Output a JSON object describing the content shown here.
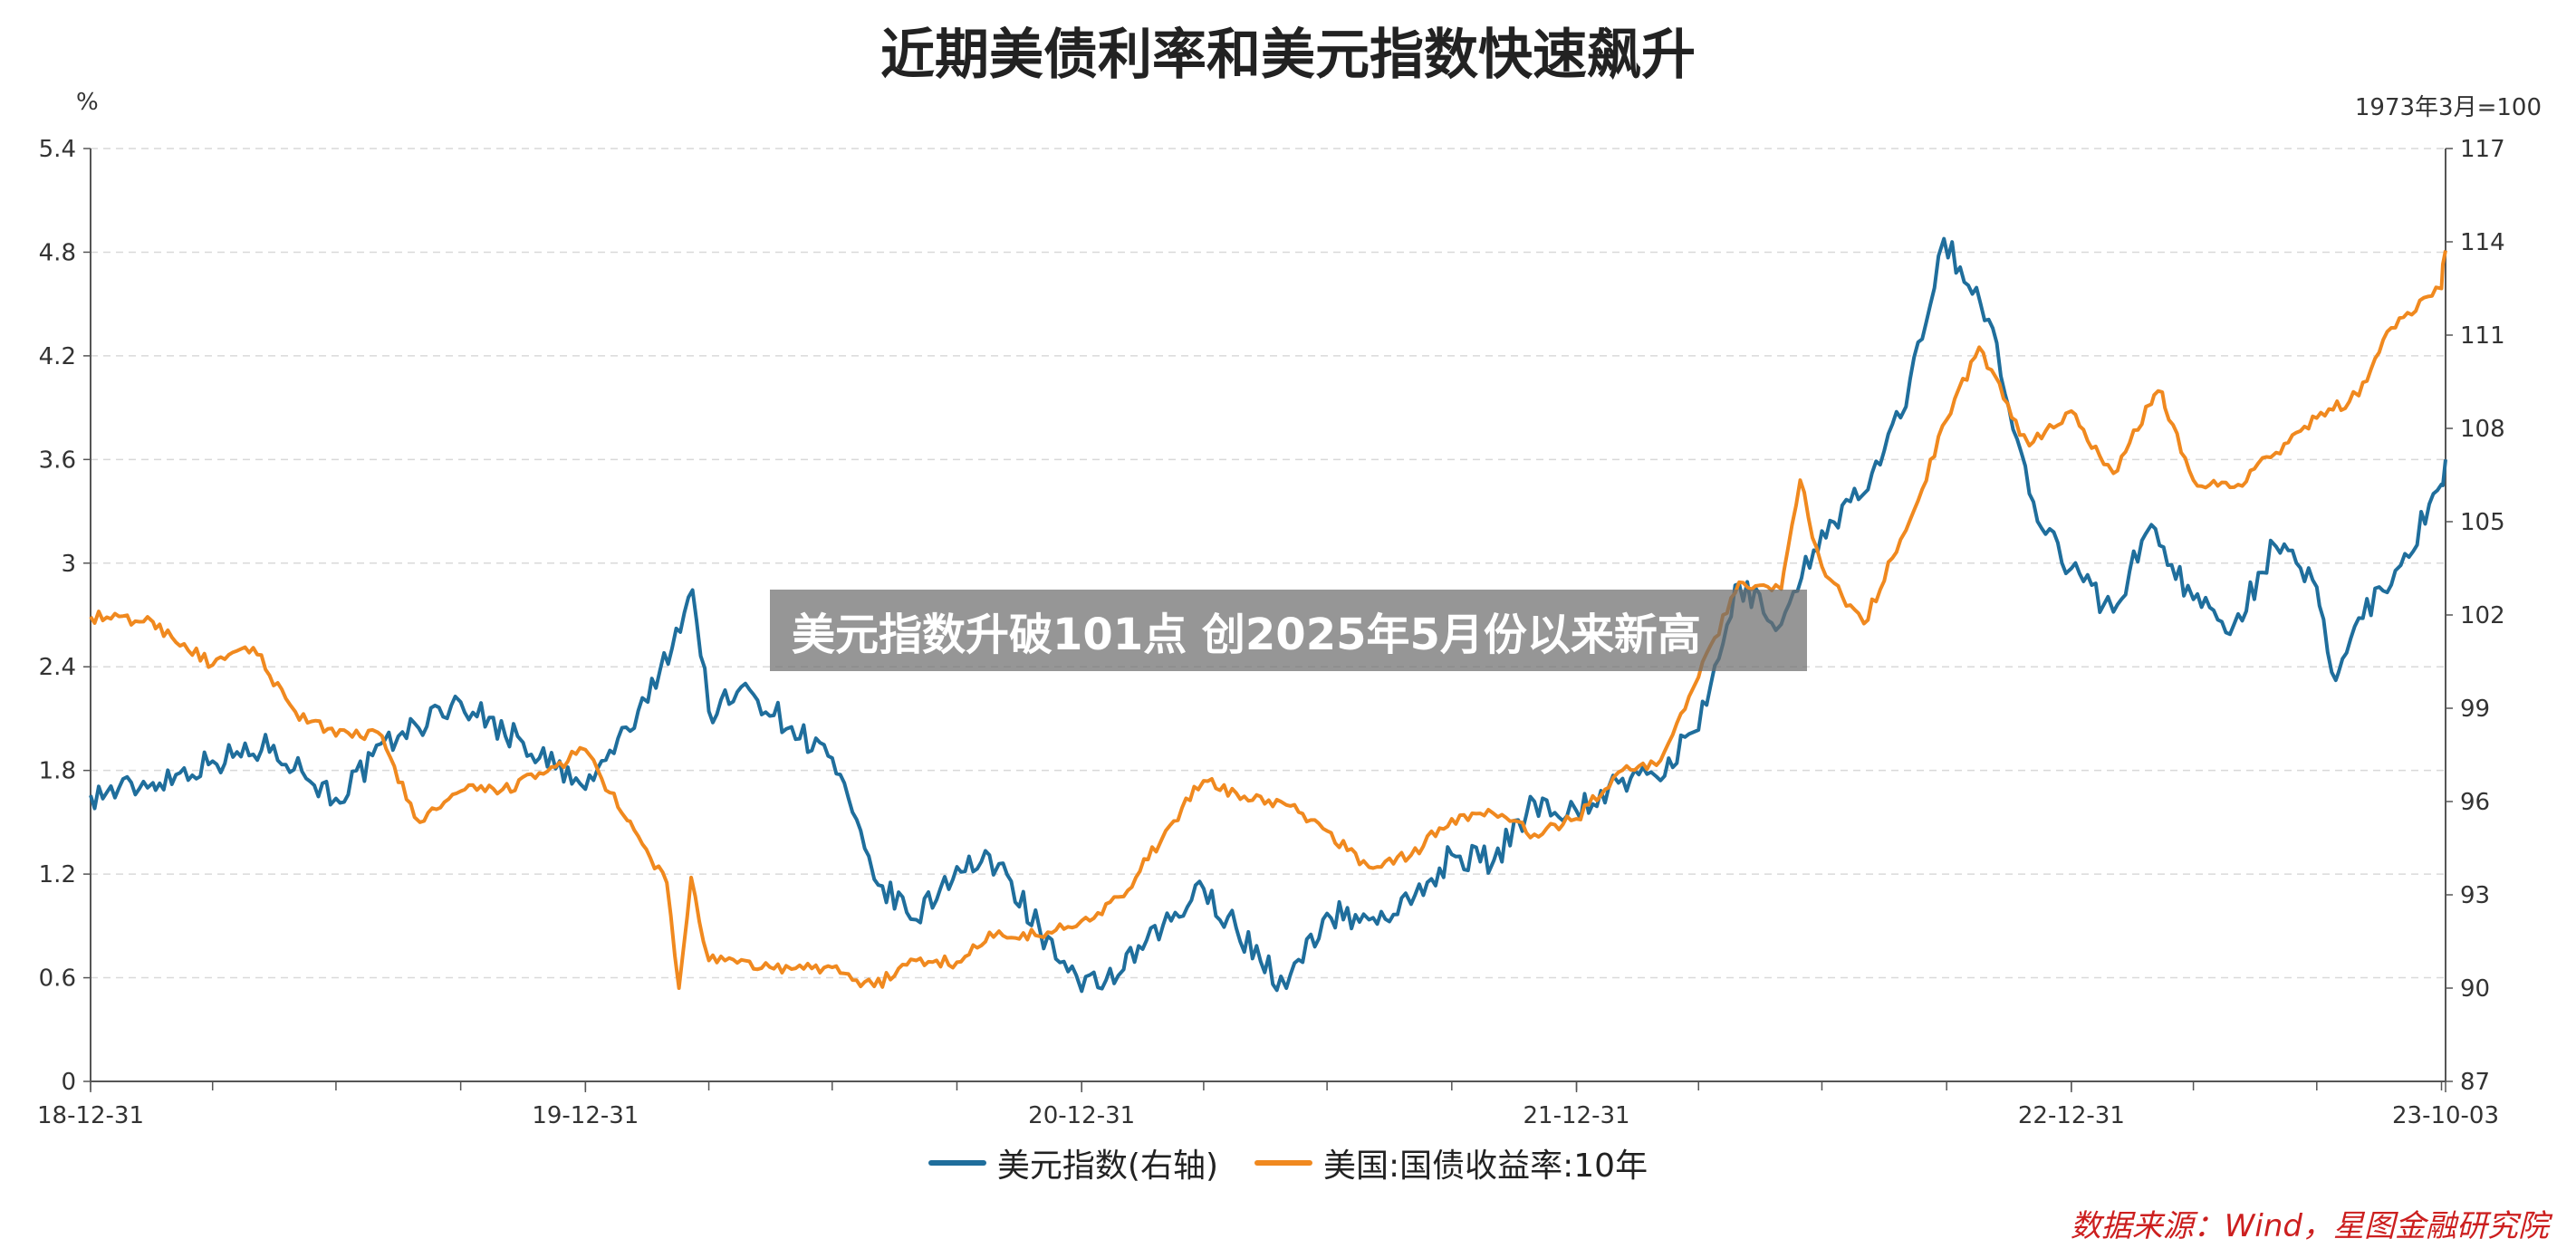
{
  "chart_data": {
    "type": "line",
    "title": "近期美债利率和美元指数快速飙升",
    "left_axis_unit": "%",
    "right_axis_unit": "1973年3月=100",
    "left_ylim": [
      0,
      5.4
    ],
    "left_ticks": [
      "0",
      "0.6",
      "1.2",
      "1.8",
      "2.4",
      "3",
      "3.6",
      "4.2",
      "4.8",
      "5.4"
    ],
    "right_ylim": [
      87,
      117
    ],
    "right_ticks": [
      "87",
      "90",
      "93",
      "96",
      "99",
      "102",
      "105",
      "108",
      "111",
      "114",
      "117"
    ],
    "x_range": [
      "2018-12-31",
      "2023-10-03"
    ],
    "x_tick_labels": [
      "18-12-31",
      "19-12-31",
      "20-12-31",
      "21-12-31",
      "22-12-31",
      "23-10-03"
    ],
    "grid": true,
    "legend_position": "bottom",
    "series": [
      {
        "name": "美元指数(右轴)",
        "axis": "right",
        "color": "#1f6e9c",
        "points": [
          [
            "2018-12-31",
            96.2
          ],
          [
            "2019-02-15",
            96.6
          ],
          [
            "2019-03-31",
            97.3
          ],
          [
            "2019-05-15",
            97.8
          ],
          [
            "2019-06-30",
            96.1
          ],
          [
            "2019-08-15",
            98.1
          ],
          [
            "2019-09-30",
            99.2
          ],
          [
            "2019-11-15",
            97.9
          ],
          [
            "2019-12-31",
            96.4
          ],
          [
            "2020-02-15",
            99.2
          ],
          [
            "2020-03-19",
            102.8
          ],
          [
            "2020-03-31",
            98.9
          ],
          [
            "2020-04-30",
            99.6
          ],
          [
            "2020-05-31",
            98.4
          ],
          [
            "2020-06-30",
            97.4
          ],
          [
            "2020-07-31",
            93.5
          ],
          [
            "2020-08-31",
            92.2
          ],
          [
            "2020-09-30",
            93.9
          ],
          [
            "2020-10-31",
            94.0
          ],
          [
            "2020-11-30",
            91.9
          ],
          [
            "2020-12-31",
            89.9
          ],
          [
            "2021-01-31",
            90.6
          ],
          [
            "2021-03-31",
            93.2
          ],
          [
            "2021-05-31",
            90.0
          ],
          [
            "2021-06-30",
            92.4
          ],
          [
            "2021-07-31",
            92.2
          ],
          [
            "2021-08-31",
            92.7
          ],
          [
            "2021-09-30",
            94.3
          ],
          [
            "2021-10-31",
            94.1
          ],
          [
            "2021-11-30",
            96.0
          ],
          [
            "2021-12-31",
            95.7
          ],
          [
            "2022-01-31",
            96.6
          ],
          [
            "2022-02-28",
            96.8
          ],
          [
            "2022-03-31",
            98.3
          ],
          [
            "2022-04-30",
            103.0
          ],
          [
            "2022-05-31",
            101.7
          ],
          [
            "2022-06-30",
            104.7
          ],
          [
            "2022-07-31",
            105.9
          ],
          [
            "2022-08-31",
            108.7
          ],
          [
            "2022-09-28",
            114.1
          ],
          [
            "2022-10-31",
            111.5
          ],
          [
            "2022-11-30",
            105.9
          ],
          [
            "2022-12-31",
            103.5
          ],
          [
            "2023-01-31",
            102.1
          ],
          [
            "2023-02-28",
            104.9
          ],
          [
            "2023-03-31",
            102.5
          ],
          [
            "2023-04-30",
            101.7
          ],
          [
            "2023-05-31",
            104.2
          ],
          [
            "2023-06-30",
            102.9
          ],
          [
            "2023-07-14",
            99.9
          ],
          [
            "2023-07-31",
            101.9
          ],
          [
            "2023-08-31",
            103.6
          ],
          [
            "2023-09-30",
            106.2
          ],
          [
            "2023-10-03",
            107.0
          ]
        ]
      },
      {
        "name": "美国:国债收益率:10年",
        "axis": "left",
        "color": "#f0891f",
        "points": [
          [
            "2018-12-31",
            2.69
          ],
          [
            "2019-02-15",
            2.66
          ],
          [
            "2019-03-31",
            2.41
          ],
          [
            "2019-04-30",
            2.51
          ],
          [
            "2019-05-31",
            2.14
          ],
          [
            "2019-06-30",
            2.0
          ],
          [
            "2019-07-31",
            2.02
          ],
          [
            "2019-08-31",
            1.5
          ],
          [
            "2019-09-30",
            1.68
          ],
          [
            "2019-10-31",
            1.69
          ],
          [
            "2019-11-30",
            1.78
          ],
          [
            "2019-12-31",
            1.92
          ],
          [
            "2020-01-31",
            1.51
          ],
          [
            "2020-02-29",
            1.15
          ],
          [
            "2020-03-09",
            0.54
          ],
          [
            "2020-03-18",
            1.18
          ],
          [
            "2020-03-31",
            0.7
          ],
          [
            "2020-05-31",
            0.65
          ],
          [
            "2020-06-30",
            0.66
          ],
          [
            "2020-07-31",
            0.55
          ],
          [
            "2020-08-31",
            0.7
          ],
          [
            "2020-09-30",
            0.69
          ],
          [
            "2020-10-31",
            0.87
          ],
          [
            "2020-11-30",
            0.84
          ],
          [
            "2020-12-31",
            0.93
          ],
          [
            "2021-01-31",
            1.07
          ],
          [
            "2021-02-28",
            1.4
          ],
          [
            "2021-03-31",
            1.74
          ],
          [
            "2021-04-30",
            1.65
          ],
          [
            "2021-05-31",
            1.6
          ],
          [
            "2021-06-30",
            1.45
          ],
          [
            "2021-07-31",
            1.24
          ],
          [
            "2021-08-31",
            1.31
          ],
          [
            "2021-09-30",
            1.52
          ],
          [
            "2021-10-31",
            1.55
          ],
          [
            "2021-11-30",
            1.43
          ],
          [
            "2021-12-31",
            1.52
          ],
          [
            "2022-01-31",
            1.79
          ],
          [
            "2022-02-28",
            1.83
          ],
          [
            "2022-03-31",
            2.34
          ],
          [
            "2022-04-30",
            2.89
          ],
          [
            "2022-05-31",
            2.85
          ],
          [
            "2022-06-14",
            3.48
          ],
          [
            "2022-06-30",
            2.98
          ],
          [
            "2022-07-31",
            2.65
          ],
          [
            "2022-08-31",
            3.19
          ],
          [
            "2022-09-30",
            3.83
          ],
          [
            "2022-10-24",
            4.25
          ],
          [
            "2022-11-30",
            3.68
          ],
          [
            "2022-12-31",
            3.88
          ],
          [
            "2023-01-31",
            3.52
          ],
          [
            "2023-02-28",
            3.92
          ],
          [
            "2023-03-08",
            3.99
          ],
          [
            "2023-03-31",
            3.48
          ],
          [
            "2023-04-30",
            3.44
          ],
          [
            "2023-05-31",
            3.64
          ],
          [
            "2023-06-30",
            3.84
          ],
          [
            "2023-07-31",
            3.97
          ],
          [
            "2023-08-21",
            4.34
          ],
          [
            "2023-09-30",
            4.59
          ],
          [
            "2023-10-03",
            4.81
          ]
        ]
      }
    ]
  },
  "legend": {
    "items": [
      "美元指数(右轴)",
      "美国:国债收益率:10年"
    ]
  },
  "source": "数据来源：Wind，星图金融研究院",
  "overlay_caption": "美元指数升破101点 创2025年5月份以来新高"
}
